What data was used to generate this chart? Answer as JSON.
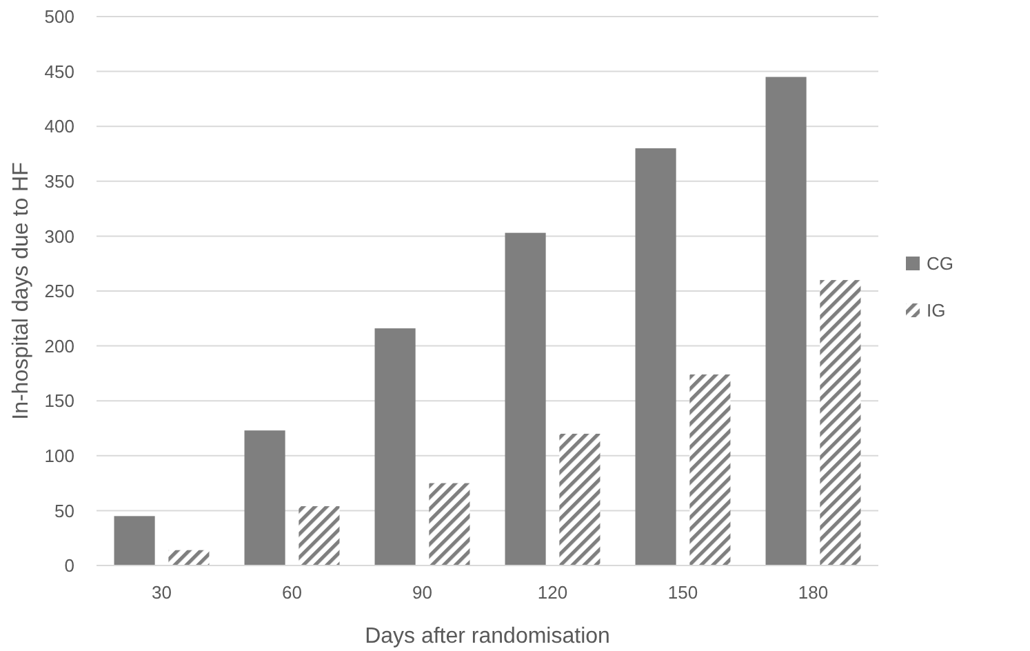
{
  "chart_data": {
    "type": "bar",
    "xlabel": "Days after randomisation",
    "ylabel": "In-hospital days due to HF",
    "categories": [
      "30",
      "60",
      "90",
      "120",
      "150",
      "180"
    ],
    "series": [
      {
        "name": "CG",
        "color": "#7f7f7f",
        "values": [
          45,
          123,
          216,
          303,
          380,
          445
        ]
      },
      {
        "name": "IG",
        "color": "#7f7f7f",
        "values": [
          14,
          54,
          75,
          120,
          174,
          260
        ]
      }
    ],
    "ylim": [
      0,
      500
    ],
    "yticks": [
      0,
      50,
      100,
      150,
      200,
      250,
      300,
      350,
      400,
      450,
      500
    ],
    "grid": "y",
    "legend": "right"
  }
}
